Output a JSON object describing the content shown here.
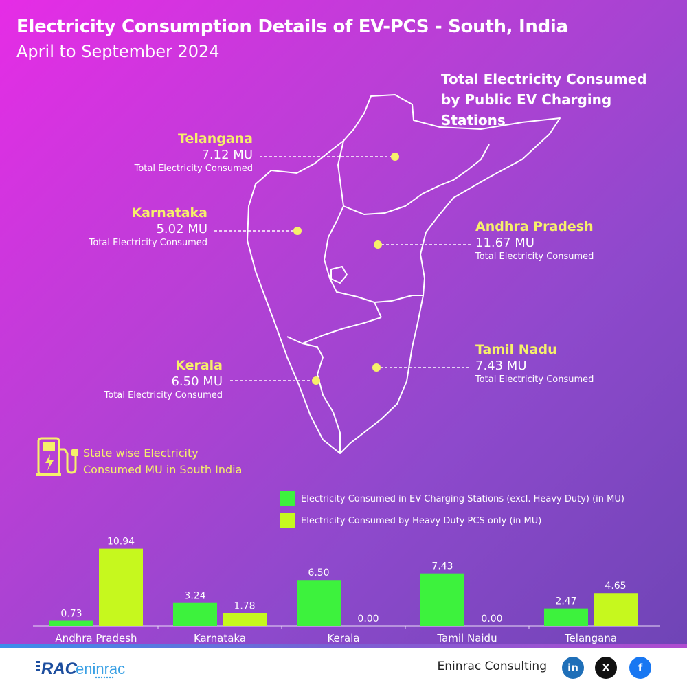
{
  "header": {
    "title": "Electricity Consumption Details of EV-PCS - South, India",
    "subtitle": "April to September 2024"
  },
  "map": {
    "heading": "Total Electricity Consumed by Public EV Charging Stations",
    "callouts": [
      {
        "state": "Telangana",
        "value": "7.12 MU",
        "caption": "Total Electricity Consumed"
      },
      {
        "state": "Karnataka",
        "value": "5.02 MU",
        "caption": "Total Electricity Consumed"
      },
      {
        "state": "Andhra Pradesh",
        "value": "11.67 MU",
        "caption": "Total Electricity Consumed"
      },
      {
        "state": "Tamil Nadu",
        "value": "7.43 MU",
        "caption": "Total Electricity Consumed"
      },
      {
        "state": "Kerala",
        "value": "6.50 MU",
        "caption": "Total Electricity Consumed"
      }
    ]
  },
  "section": {
    "icon": "ev-charger-icon",
    "line1": "State wise Electricity",
    "line2": "Consumed MU in South India"
  },
  "colors": {
    "series1": "#3df23d",
    "series2": "#c6f81e",
    "highlight": "#f6f06a"
  },
  "chart_data": {
    "type": "bar",
    "categories": [
      "Andhra Pradesh",
      "Karnataka",
      "Kerala",
      "Tamil Naidu",
      "Telangana"
    ],
    "series": [
      {
        "name": "Electricity Consumed in EV Charging Stations (excl. Heavy Duty) (in MU)",
        "values": [
          0.73,
          3.24,
          6.5,
          7.43,
          2.47
        ],
        "labels": [
          "0.73",
          "3.24",
          "6.50",
          "7.43",
          "2.47"
        ]
      },
      {
        "name": "Electricity Consumed by Heavy Duty PCS only (in MU)",
        "values": [
          10.94,
          1.78,
          0.0,
          0.0,
          4.65
        ],
        "labels": [
          "10.94",
          "1.78",
          "0.00",
          "0.00",
          "4.65"
        ]
      }
    ],
    "title": "",
    "xlabel": "",
    "ylabel": "",
    "ylim": [
      0,
      11
    ],
    "grid": false,
    "legend": "top-right"
  },
  "footer": {
    "logo_text": "RAC eninrac",
    "company": "Eninrac Consulting",
    "social": [
      {
        "name": "linkedin-icon",
        "glyph": "in"
      },
      {
        "name": "x-icon",
        "glyph": "X"
      },
      {
        "name": "facebook-icon",
        "glyph": "f"
      }
    ]
  }
}
